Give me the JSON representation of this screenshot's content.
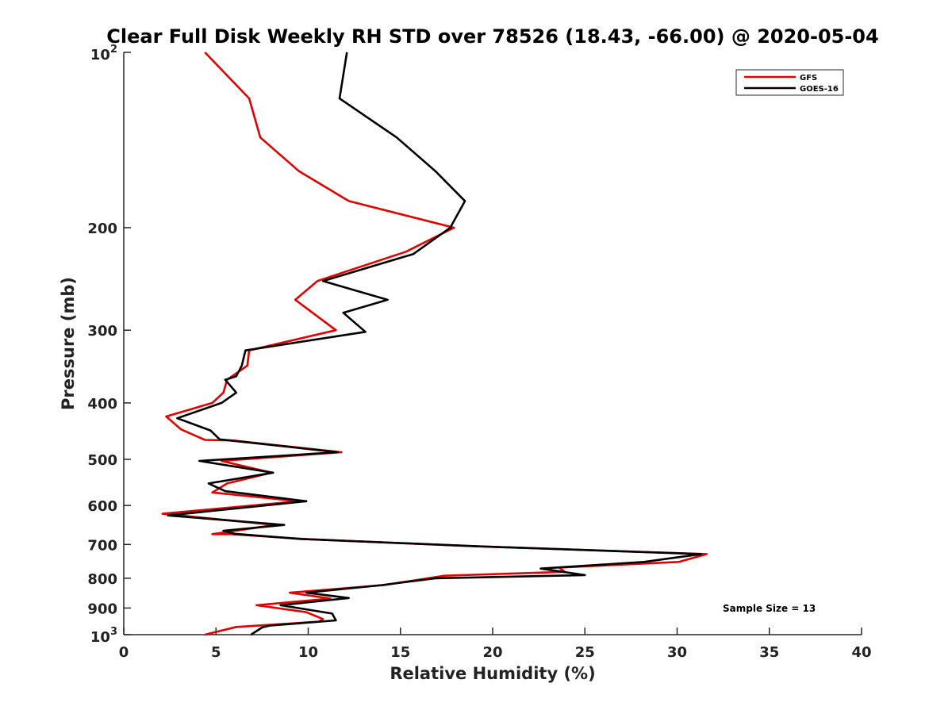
{
  "chart_data": {
    "type": "line",
    "title": "Clear Full Disk Weekly RH STD over 78526 (18.43, -66.00) @ 2020-05-04",
    "xlabel": "Relative Humidity (%)",
    "ylabel": "Pressure (mb)",
    "xlim": [
      0,
      40
    ],
    "ylim": [
      100,
      1000
    ],
    "y_scale": "log",
    "y_reversed": true,
    "x_ticks": [
      0,
      5,
      10,
      15,
      20,
      25,
      30,
      35,
      40
    ],
    "x_tick_labels": [
      "0",
      "5",
      "10",
      "15",
      "20",
      "25",
      "30",
      "35",
      "40"
    ],
    "y_ticks": [
      200,
      300,
      400,
      500,
      600,
      700,
      800,
      900
    ],
    "y_tick_labels": [
      "200",
      "300",
      "400",
      "500",
      "600",
      "700",
      "800",
      "900"
    ],
    "y_end_ticks": [
      {
        "value": 100,
        "base": "10",
        "exp": "2"
      },
      {
        "value": 1000,
        "base": "10",
        "exp": "3"
      }
    ],
    "grid": false,
    "legend_position": "top-right",
    "series": [
      {
        "name": "GFS",
        "color": "#e00000",
        "points": [
          [
            4.4,
            100
          ],
          [
            6.8,
            120
          ],
          [
            7.4,
            140
          ],
          [
            9.5,
            160
          ],
          [
            12.2,
            180
          ],
          [
            17.9,
            200
          ],
          [
            15.3,
            220
          ],
          [
            10.5,
            247
          ],
          [
            9.3,
            266
          ],
          [
            11.5,
            300
          ],
          [
            6.8,
            325
          ],
          [
            6.7,
            345
          ],
          [
            5.6,
            365
          ],
          [
            5.4,
            384
          ],
          [
            4.8,
            400
          ],
          [
            2.3,
            422
          ],
          [
            3.1,
            444
          ],
          [
            4.4,
            463
          ],
          [
            5.9,
            464
          ],
          [
            11.8,
            486
          ],
          [
            5.3,
            503
          ],
          [
            8.0,
            527
          ],
          [
            5.6,
            550
          ],
          [
            4.8,
            570
          ],
          [
            5.1,
            571
          ],
          [
            9.5,
            590
          ],
          [
            2.1,
            620
          ],
          [
            8.2,
            648
          ],
          [
            4.8,
            672
          ],
          [
            5.8,
            672
          ],
          [
            9.8,
            685
          ],
          [
            19.0,
            705
          ],
          [
            31.6,
            727
          ],
          [
            30.1,
            750
          ],
          [
            23.6,
            767
          ],
          [
            23.9,
            780
          ],
          [
            17.4,
            792
          ],
          [
            14.1,
            822
          ],
          [
            9.0,
            847
          ],
          [
            11.2,
            867
          ],
          [
            7.2,
            890
          ],
          [
            9.9,
            915
          ],
          [
            10.8,
            940
          ],
          [
            10.6,
            950
          ],
          [
            6.1,
            970
          ],
          [
            4.4,
            1000
          ]
        ]
      },
      {
        "name": "GOES-16",
        "color": "#000000",
        "points": [
          [
            12.1,
            100
          ],
          [
            11.7,
            120
          ],
          [
            14.8,
            140
          ],
          [
            16.9,
            160
          ],
          [
            18.5,
            180
          ],
          [
            17.7,
            200
          ],
          [
            15.7,
            222
          ],
          [
            10.8,
            247
          ],
          [
            14.3,
            266
          ],
          [
            11.9,
            280
          ],
          [
            13.1,
            302
          ],
          [
            6.6,
            325
          ],
          [
            6.4,
            345
          ],
          [
            6.1,
            360
          ],
          [
            5.5,
            365
          ],
          [
            6.1,
            384
          ],
          [
            5.3,
            400
          ],
          [
            2.9,
            425
          ],
          [
            4.7,
            446
          ],
          [
            5.2,
            462
          ],
          [
            11.6,
            486
          ],
          [
            4.1,
            503
          ],
          [
            8.1,
            527
          ],
          [
            4.6,
            550
          ],
          [
            5.5,
            567
          ],
          [
            9.9,
            590
          ],
          [
            2.4,
            624
          ],
          [
            8.7,
            648
          ],
          [
            5.4,
            663
          ],
          [
            6.0,
            671
          ],
          [
            9.6,
            685
          ],
          [
            19.2,
            705
          ],
          [
            31.3,
            727
          ],
          [
            28.2,
            750
          ],
          [
            22.6,
            770
          ],
          [
            25.0,
            790
          ],
          [
            16.9,
            800
          ],
          [
            14.0,
            822
          ],
          [
            9.9,
            847
          ],
          [
            12.2,
            865
          ],
          [
            8.5,
            890
          ],
          [
            11.3,
            920
          ],
          [
            11.5,
            945
          ],
          [
            7.9,
            965
          ],
          [
            7.5,
            972
          ],
          [
            6.9,
            1000
          ]
        ]
      }
    ],
    "annotation": "Sample Size = 13"
  }
}
